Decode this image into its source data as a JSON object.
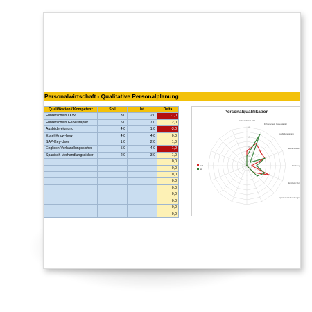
{
  "title": "Personalwirtschaft - Qualitative Personalplanung",
  "table": {
    "headers": [
      "Qualifikation / Kompetenz",
      "Soll",
      "Ist",
      "Delta"
    ],
    "rows": [
      {
        "q": "Führerschein LKW",
        "soll": "3,0",
        "ist": "2,0",
        "delta": "-1,0",
        "neg": true
      },
      {
        "q": "Führerschein Gabelstapler",
        "soll": "5,0",
        "ist": "7,0",
        "delta": "2,0",
        "neg": false
      },
      {
        "q": "Ausbildereignung",
        "soll": "4,0",
        "ist": "1,0",
        "delta": "-3,0",
        "neg": true
      },
      {
        "q": "Excel-Know-how",
        "soll": "4,0",
        "ist": "4,0",
        "delta": "0,0",
        "neg": false
      },
      {
        "q": "SAP-Key-User",
        "soll": "1,0",
        "ist": "2,0",
        "delta": "1,0",
        "neg": false
      },
      {
        "q": "Englisch-Verhandlungssicher",
        "soll": "5,0",
        "ist": "4,0",
        "delta": "-1,0",
        "neg": true
      },
      {
        "q": "Spanisch-Verhandlungssicher",
        "soll": "2,0",
        "ist": "3,0",
        "delta": "1,0",
        "neg": false
      },
      {
        "q": "",
        "soll": "",
        "ist": "",
        "delta": "0,0",
        "neg": false
      },
      {
        "q": "",
        "soll": "",
        "ist": "",
        "delta": "0,0",
        "neg": false
      },
      {
        "q": "",
        "soll": "",
        "ist": "",
        "delta": "0,0",
        "neg": false
      },
      {
        "q": "",
        "soll": "",
        "ist": "",
        "delta": "0,0",
        "neg": false
      },
      {
        "q": "",
        "soll": "",
        "ist": "",
        "delta": "0,0",
        "neg": false
      },
      {
        "q": "",
        "soll": "",
        "ist": "",
        "delta": "0,0",
        "neg": false
      },
      {
        "q": "",
        "soll": "",
        "ist": "",
        "delta": "0,0",
        "neg": false
      },
      {
        "q": "",
        "soll": "",
        "ist": "",
        "delta": "0,0",
        "neg": false
      },
      {
        "q": "",
        "soll": "",
        "ist": "",
        "delta": "0,0",
        "neg": false
      }
    ]
  },
  "chart_data": {
    "type": "radar",
    "title": "Personalqualifikation",
    "categories": [
      "Führerschein LKW",
      "Führerschein Gabelstapler",
      "Ausbildereignung",
      "Excel-Know-how",
      "SAP-Key-User",
      "Englisch-Verhandlungssicher",
      "Spanisch-Verhandlungssicher",
      "",
      "",
      "",
      "",
      "",
      "",
      "",
      "",
      ""
    ],
    "series": [
      {
        "name": "Soll",
        "color": "#d62828",
        "values": [
          3,
          5,
          4,
          4,
          1,
          5,
          2,
          0,
          0,
          0,
          0,
          0,
          0,
          0,
          0,
          0
        ]
      },
      {
        "name": "Ist",
        "color": "#2e7d32",
        "values": [
          2,
          7,
          1,
          4,
          2,
          4,
          3,
          0,
          0,
          0,
          0,
          0,
          0,
          0,
          0,
          0
        ]
      }
    ],
    "rmax": 8,
    "rings": [
      1,
      2,
      3,
      4,
      5,
      6,
      7,
      8
    ],
    "ring_labels": [
      "2,0",
      "4,0",
      "6,0",
      "8,0"
    ],
    "legend_position": "left"
  }
}
